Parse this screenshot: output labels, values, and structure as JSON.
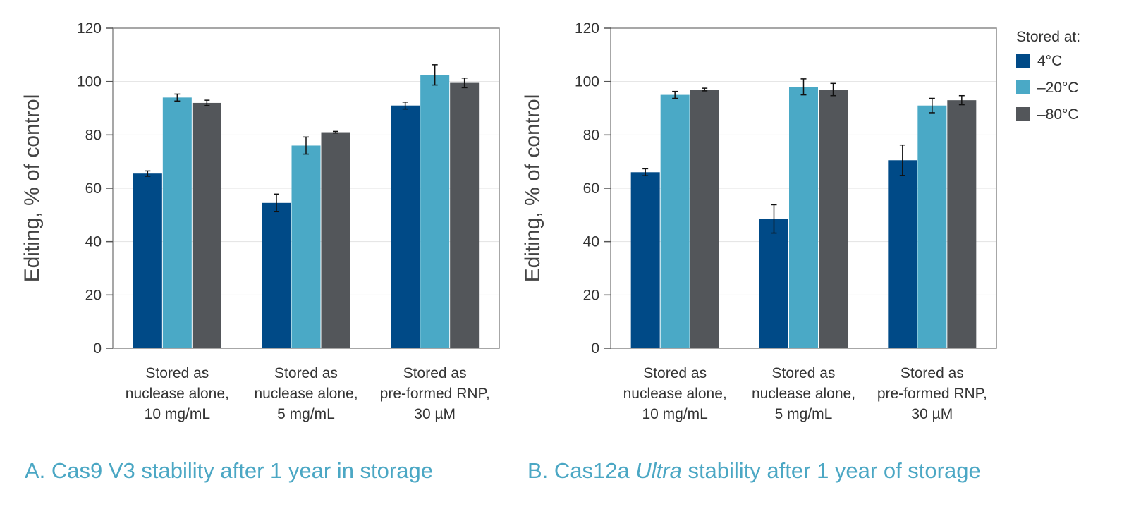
{
  "legend": {
    "title": "Stored at:",
    "items": [
      {
        "label": "4°C",
        "color": "#004a87"
      },
      {
        "label": "–20°C",
        "color": "#4aa9c6"
      },
      {
        "label": "–80°C",
        "color": "#53565a"
      }
    ]
  },
  "chart_data": [
    {
      "type": "bar",
      "title": "A. Cas9 V3 stability after 1 year in storage",
      "caption_parts": [
        {
          "text": "A. Cas9 V3 stability after 1 year in storage",
          "italic": false
        }
      ],
      "ylabel": "Editing, % of control",
      "xlabel": "",
      "ylim": [
        0,
        120
      ],
      "yticks": [
        0,
        20,
        40,
        60,
        80,
        100,
        120
      ],
      "grid": true,
      "categories": [
        [
          "Stored as",
          "nuclease alone,",
          "10 mg/mL"
        ],
        [
          "Stored as",
          "nuclease alone,",
          "5 mg/mL"
        ],
        [
          "Stored as",
          "pre-formed RNP,",
          "30 µM"
        ]
      ],
      "series": [
        {
          "name": "4°C",
          "values": [
            65.5,
            54.5,
            91
          ],
          "errors": [
            1,
            3.3,
            1.3
          ]
        },
        {
          "name": "–20°C",
          "values": [
            94,
            76,
            102.5
          ],
          "errors": [
            1.3,
            3.2,
            3.8
          ]
        },
        {
          "name": "–80°C",
          "values": [
            92,
            81,
            99.5
          ],
          "errors": [
            1,
            0.3,
            1.8
          ]
        }
      ]
    },
    {
      "type": "bar",
      "title": "B. Cas12a Ultra stability after 1 year of storage",
      "caption_parts": [
        {
          "text": "B. Cas12a ",
          "italic": false
        },
        {
          "text": "Ultra",
          "italic": true
        },
        {
          "text": " stability after 1 year of storage",
          "italic": false
        }
      ],
      "ylabel": "Editing, % of control",
      "xlabel": "",
      "ylim": [
        0,
        120
      ],
      "yticks": [
        0,
        20,
        40,
        60,
        80,
        100,
        120
      ],
      "grid": true,
      "categories": [
        [
          "Stored as",
          "nuclease alone,",
          "10 mg/mL"
        ],
        [
          "Stored as",
          "nuclease alone,",
          "5 mg/mL"
        ],
        [
          "Stored as",
          "pre-formed RNP,",
          "30 µM"
        ]
      ],
      "series": [
        {
          "name": "4°C",
          "values": [
            66,
            48.5,
            70.5
          ],
          "errors": [
            1.3,
            5.3,
            5.7
          ]
        },
        {
          "name": "–20°C",
          "values": [
            95,
            98,
            91
          ],
          "errors": [
            1.3,
            3,
            2.7
          ]
        },
        {
          "name": "–80°C",
          "values": [
            97,
            97,
            93
          ],
          "errors": [
            0.5,
            2.3,
            1.7
          ]
        }
      ]
    }
  ]
}
